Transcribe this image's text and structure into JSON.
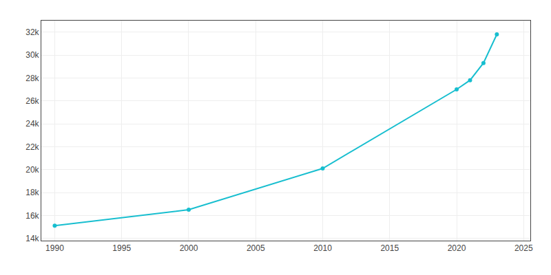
{
  "chart_data": {
    "type": "line",
    "x": [
      1990,
      2000,
      2010,
      2020,
      2021,
      2022,
      2023
    ],
    "values": [
      15100,
      16500,
      20100,
      27000,
      27800,
      29300,
      31800
    ],
    "color": "#17BECF",
    "marker": "circle",
    "line_style": "solid",
    "xlim": [
      1989,
      2025.5
    ],
    "ylim": [
      13800,
      33000
    ],
    "xticks": [
      1990,
      1995,
      2000,
      2005,
      2010,
      2015,
      2020,
      2025
    ],
    "yticks": [
      {
        "value": 14000,
        "label": "14k"
      },
      {
        "value": 16000,
        "label": "16k"
      },
      {
        "value": 18000,
        "label": "18k"
      },
      {
        "value": 20000,
        "label": "20k"
      },
      {
        "value": 22000,
        "label": "22k"
      },
      {
        "value": 24000,
        "label": "24k"
      },
      {
        "value": 26000,
        "label": "26k"
      },
      {
        "value": 28000,
        "label": "28k"
      },
      {
        "value": 30000,
        "label": "30k"
      },
      {
        "value": 32000,
        "label": "32k"
      }
    ],
    "grid": true
  }
}
